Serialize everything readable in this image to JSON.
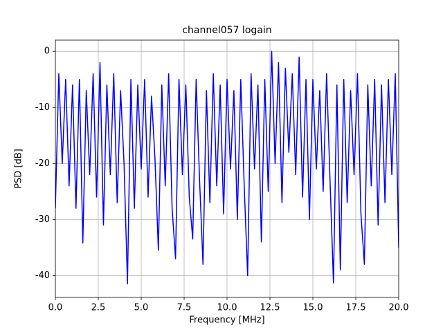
{
  "chart_data": {
    "type": "line",
    "title": "channel057 logain",
    "x_label": "Frequency [MHz]",
    "y_label": "PSD [dB]",
    "x": [
      0,
      0.2,
      0.4,
      0.6,
      0.8,
      1.0,
      1.2,
      1.4,
      1.6,
      1.8,
      2.0,
      2.2,
      2.4,
      2.6,
      2.8,
      3.0,
      3.2,
      3.4,
      3.6,
      3.8,
      4.0,
      4.2,
      4.4,
      4.6,
      4.8,
      5.0,
      5.2,
      5.4,
      5.6,
      5.8,
      6.0,
      6.2,
      6.4,
      6.6,
      6.8,
      7.0,
      7.2,
      7.4,
      7.6,
      7.8,
      8.0,
      8.2,
      8.4,
      8.6,
      8.8,
      9.0,
      9.2,
      9.4,
      9.6,
      9.8,
      10.0,
      10.2,
      10.4,
      10.6,
      10.8,
      11.0,
      11.2,
      11.4,
      11.6,
      11.8,
      12.0,
      12.2,
      12.4,
      12.6,
      12.8,
      13.0,
      13.2,
      13.4,
      13.6,
      13.8,
      14.0,
      14.2,
      14.4,
      14.6,
      14.8,
      15.0,
      15.2,
      15.4,
      15.6,
      15.8,
      16.0,
      16.2,
      16.4,
      16.6,
      16.8,
      17.0,
      17.2,
      17.4,
      17.6,
      17.8,
      18.0,
      18.2,
      18.4,
      18.6,
      18.8,
      19.0,
      19.2,
      19.4,
      19.6,
      19.8,
      20.0
    ],
    "series": [
      {
        "name": "logain",
        "color": "#0000ff",
        "values": [
          -28,
          -4,
          -20,
          -5,
          -24,
          -6,
          -28,
          -5,
          -34.2,
          -7,
          -22,
          -4,
          -26,
          -2,
          -31,
          -6,
          -22,
          -4,
          -27,
          -7,
          -20,
          -41.5,
          -5,
          -28,
          -6,
          -21,
          -5,
          -26,
          -8,
          -19,
          -35.5,
          -6,
          -24,
          -4,
          -28,
          -37,
          -5,
          -22,
          -6,
          -26,
          -33.5,
          -5,
          -23,
          -38,
          -7,
          -27,
          -4,
          -24,
          -6,
          -29,
          -5,
          -21,
          -7,
          -30,
          -5,
          -24,
          -40,
          -4,
          -21,
          -6,
          -34,
          -5,
          -25,
          0,
          -20,
          -2,
          -27,
          -3,
          -18,
          -4,
          -22,
          -1,
          -26,
          -5,
          -30,
          -5,
          -21,
          -7,
          -25,
          -4,
          -23,
          -41.3,
          -6,
          -39,
          -5,
          -27,
          -7,
          -22,
          -4,
          -29,
          -38,
          -6,
          -24,
          -5,
          -31,
          -6,
          -27,
          -5,
          -22,
          -4,
          -35
        ]
      }
    ],
    "xlim": [
      0,
      20
    ],
    "ylim": [
      -43.9,
      2.0
    ],
    "xticks": [
      {
        "value": 0,
        "label": "0.0"
      },
      2.5,
      {
        "value": 5,
        "label": "5.0"
      },
      7.5,
      {
        "value": 10,
        "label": "10.0"
      },
      12.5,
      {
        "value": 15,
        "label": "15.0"
      },
      17.5,
      {
        "value": 20,
        "label": "20.0"
      }
    ],
    "yticks": [
      0,
      -10,
      -20,
      -30,
      -40
    ],
    "grid": true
  }
}
